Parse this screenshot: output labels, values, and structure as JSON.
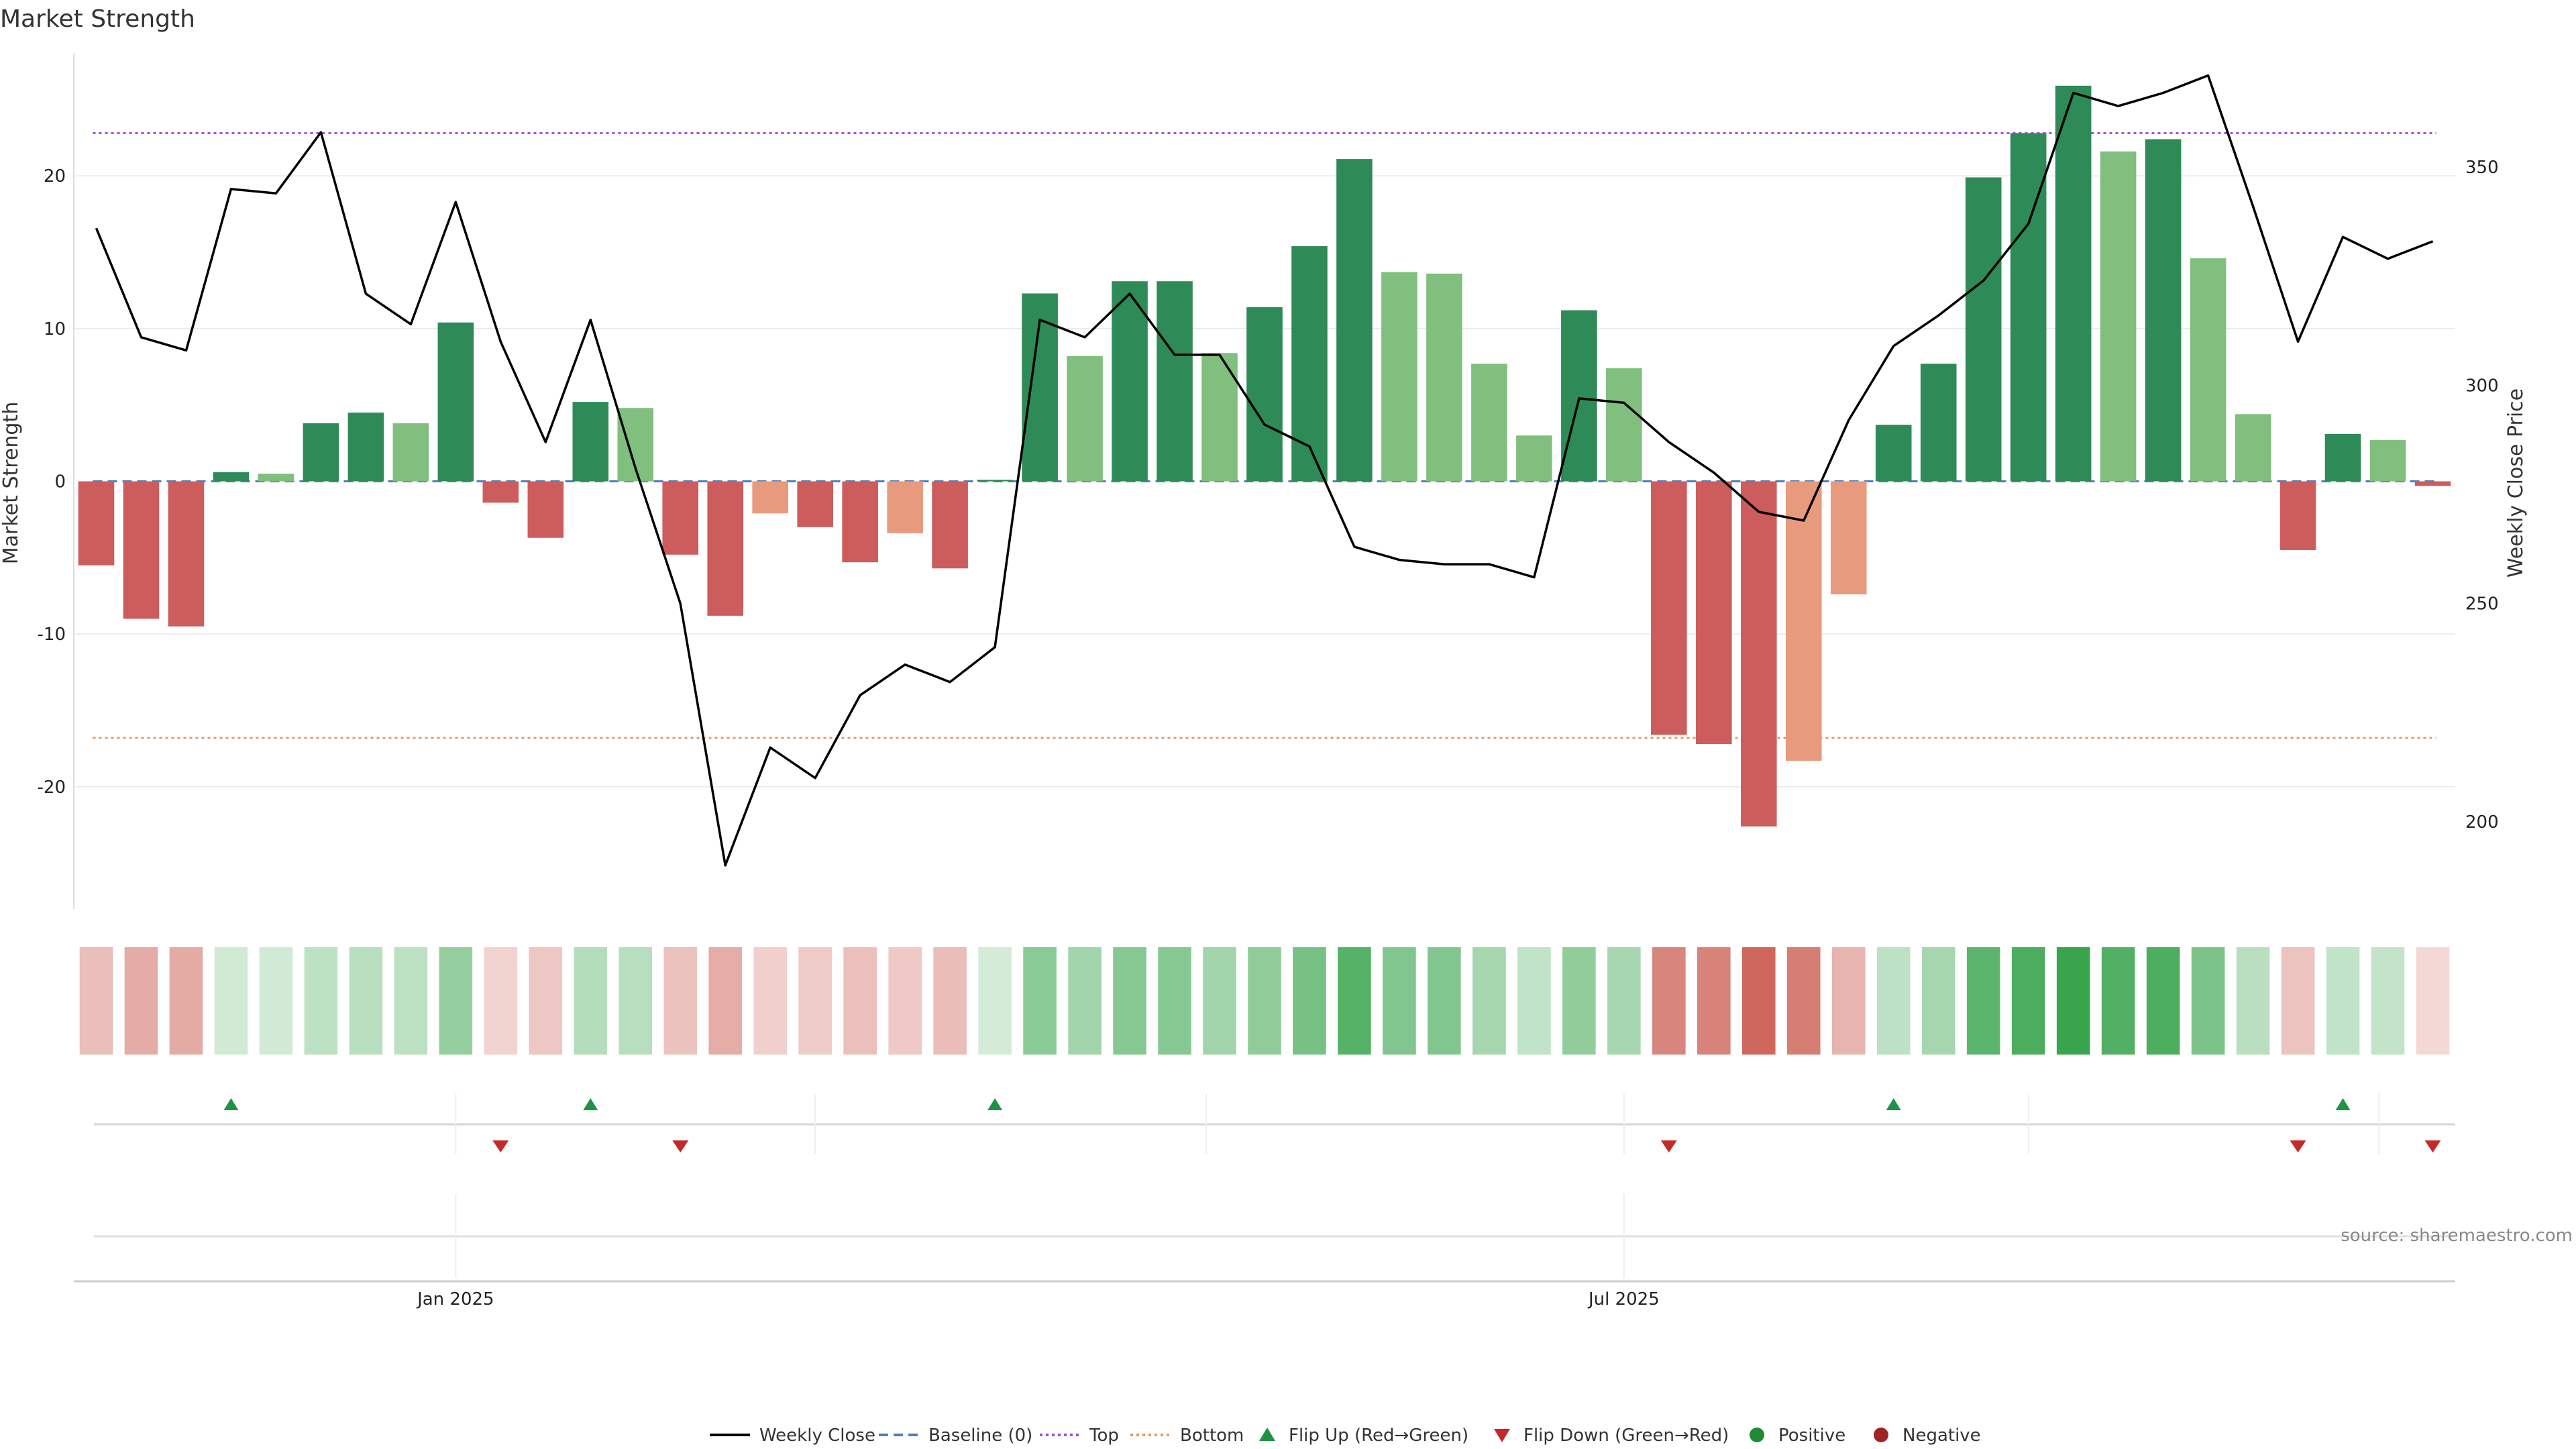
{
  "chart_data": {
    "type": "bar",
    "title": "Market Strength",
    "ylabel": "Market Strength",
    "y2label": "Weekly Close Price",
    "source": "source: sharemaestro.com",
    "ylim": [
      -28,
      28
    ],
    "y2lim": [
      180,
      376
    ],
    "yticks": [
      -20,
      -10,
      0,
      10,
      20
    ],
    "y2ticks": [
      200,
      250,
      300,
      350
    ],
    "top_line": 22.8,
    "bottom_line": -16.8,
    "xticks": [
      {
        "index": 8.5,
        "label": "Jan 2025"
      },
      {
        "index": 34.5,
        "label": "Jul 2025"
      }
    ],
    "strength": [
      -5.5,
      -9.0,
      -9.5,
      0.6,
      0.5,
      3.8,
      4.5,
      3.8,
      10.4,
      -1.4,
      -3.7,
      5.2,
      4.8,
      -4.8,
      -8.8,
      -2.1,
      -3.0,
      -5.3,
      -3.4,
      -5.7,
      0.1,
      12.3,
      8.2,
      13.1,
      13.1,
      8.4,
      11.4,
      15.4,
      21.1,
      13.7,
      13.6,
      7.7,
      3.0,
      11.2,
      7.4,
      -16.6,
      -17.2,
      -22.6,
      -18.3,
      -7.4,
      3.7,
      7.7,
      19.9,
      22.8,
      25.9,
      21.6,
      22.4,
      14.6,
      4.4,
      -4.5,
      3.1,
      2.7,
      -0.3
    ],
    "weekly_close": [
      336,
      311,
      308,
      345,
      344,
      358,
      321,
      314,
      342,
      310,
      287,
      315,
      281,
      250,
      190,
      217,
      210,
      229,
      236,
      232,
      240,
      315,
      311,
      321,
      307,
      307,
      291,
      286,
      263,
      260,
      259,
      259,
      256,
      297,
      296,
      287,
      280,
      271,
      269,
      292,
      309,
      316,
      324,
      337,
      367,
      364,
      367,
      371,
      341,
      310,
      334,
      329,
      333
    ],
    "flip_up_indices": [
      3,
      11,
      20,
      40,
      50
    ],
    "flip_down_indices": [
      9,
      13,
      35,
      49,
      52
    ],
    "series": [
      {
        "name": "Weekly Close",
        "color": "#000000"
      },
      {
        "name": "Baseline (0)",
        "color": "#4f7db8"
      },
      {
        "name": "Top",
        "color": "#a64ad1"
      },
      {
        "name": "Bottom",
        "color": "#e69a5c"
      },
      {
        "name": "Flip Up (Red→Green)",
        "color": "#1e9348"
      },
      {
        "name": "Flip Down (Green→Red)",
        "color": "#c62828"
      },
      {
        "name": "Positive",
        "color": "#1e8a36"
      },
      {
        "name": "Negative",
        "color": "#a32323"
      }
    ],
    "colors": {
      "strong_positive": "#2e8b57",
      "weak_positive": "#80bf7d",
      "strong_negative": "#cd5c5c",
      "weak_negative": "#e89a7e"
    }
  }
}
